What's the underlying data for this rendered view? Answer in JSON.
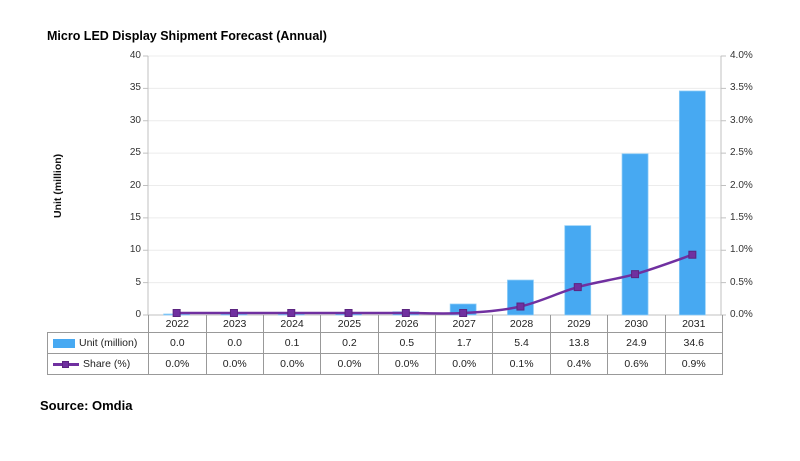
{
  "title": "Micro LED Display Shipment Forecast (Annual)",
  "source": "Source: Omdia",
  "colors": {
    "bar_blue": "#47A9F2",
    "bar_edge": "#8ecdf7",
    "line_purple": "#7030A0",
    "marker_edge": "#5b2580",
    "gridline": "#ececec",
    "axis_line": "#c0c0c0",
    "table_border": "#999999"
  },
  "chart_data": {
    "type": "bar",
    "subtype": "combo-bar-line",
    "title": "Micro LED Display Shipment Forecast (Annual)",
    "categories": [
      "2022",
      "2023",
      "2024",
      "2025",
      "2026",
      "2027",
      "2028",
      "2029",
      "2030",
      "2031"
    ],
    "series": [
      {
        "name": "Unit (million)",
        "type": "bar",
        "axis": "left",
        "color": "#47A9F2",
        "values": [
          0.0,
          0.0,
          0.1,
          0.2,
          0.5,
          1.7,
          5.4,
          13.8,
          24.9,
          34.6
        ],
        "labels": [
          "0.0",
          "0.0",
          "0.1",
          "0.2",
          "0.5",
          "1.7",
          "5.4",
          "13.8",
          "24.9",
          "34.6"
        ]
      },
      {
        "name": "Share (%)",
        "type": "line",
        "axis": "right",
        "color": "#7030A0",
        "values": [
          0.0,
          0.0,
          0.0,
          0.0,
          0.0,
          0.0,
          0.1,
          0.4,
          0.6,
          0.9
        ],
        "labels": [
          "0.0%",
          "0.0%",
          "0.0%",
          "0.0%",
          "0.0%",
          "0.0%",
          "0.1%",
          "0.4%",
          "0.6%",
          "0.9%"
        ]
      }
    ],
    "y_left": {
      "label": "Unit (million)",
      "min": 0,
      "max": 40,
      "step": 5,
      "ticks": [
        "0",
        "5",
        "10",
        "15",
        "20",
        "25",
        "30",
        "35",
        "40"
      ]
    },
    "y_right": {
      "label": "",
      "min": 0,
      "max": 4,
      "step": 0.5,
      "ticks": [
        "0.0%",
        "0.5%",
        "1.0%",
        "1.5%",
        "2.0%",
        "2.5%",
        "3.0%",
        "3.5%",
        "4.0%"
      ]
    },
    "grid": true,
    "legend_position": "table-left"
  }
}
